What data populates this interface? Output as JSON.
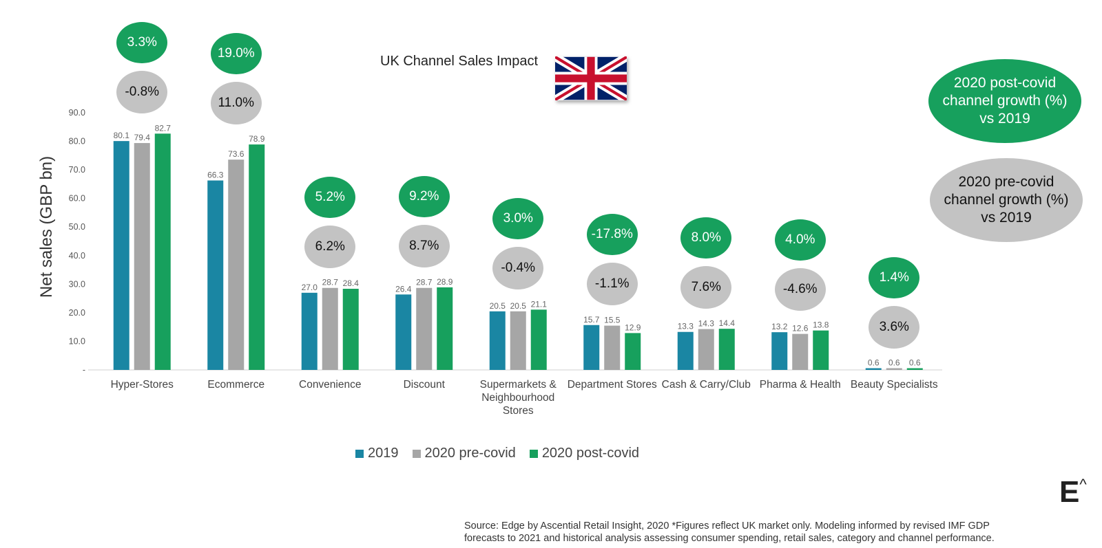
{
  "chart_data": {
    "type": "bar",
    "title": "UK Channel Sales Impact",
    "ylabel": "Net sales (GBP  bn)",
    "xlabel": "",
    "ylim": [
      0,
      90
    ],
    "yticks": [
      "-",
      "10.0",
      "20.0",
      "30.0",
      "40.0",
      "50.0",
      "60.0",
      "70.0",
      "80.0",
      "90.0"
    ],
    "categories": [
      "Hyper-Stores",
      "Ecommerce",
      "Convenience",
      "Discount",
      "Supermarkets & Neighbourhood Stores",
      "Department Stores",
      "Cash & Carry/Club",
      "Pharma & Health",
      "Beauty Specialists"
    ],
    "category_lines": [
      [
        "Hyper-Stores"
      ],
      [
        "Ecommerce"
      ],
      [
        "Convenience"
      ],
      [
        "Discount"
      ],
      [
        "Supermarkets &",
        "Neighbourhood",
        "Stores"
      ],
      [
        "Department Stores"
      ],
      [
        "Cash & Carry/Club"
      ],
      [
        "Pharma & Health"
      ],
      [
        "Beauty Specialists"
      ]
    ],
    "series": [
      {
        "name": "2019",
        "color": "#1a86a3",
        "values": [
          80.1,
          66.3,
          27.0,
          26.4,
          20.5,
          15.7,
          13.3,
          13.2,
          0.6
        ]
      },
      {
        "name": "2020 pre-covid",
        "color": "#a6a6a6",
        "values": [
          79.4,
          73.6,
          28.7,
          28.7,
          20.5,
          15.5,
          14.3,
          12.6,
          0.6
        ]
      },
      {
        "name": "2020 post-covid",
        "color": "#17a05d",
        "values": [
          82.7,
          78.9,
          28.4,
          28.9,
          21.1,
          12.9,
          14.4,
          13.8,
          0.6
        ]
      }
    ],
    "growth_post_covid": [
      "3.3%",
      "19.0%",
      "5.2%",
      "9.2%",
      "3.0%",
      "-17.8%",
      "8.0%",
      "4.0%",
      "1.4%"
    ],
    "growth_pre_covid": [
      "-0.8%",
      "11.0%",
      "6.2%",
      "8.7%",
      "-0.4%",
      "-1.1%",
      "7.6%",
      "-4.6%",
      "3.6%"
    ],
    "legend": "bottom"
  },
  "colors": {
    "post": "#17a05d",
    "pre": "#c3c3c3",
    "y2019": "#1a86a3",
    "pre_bar": "#a6a6a6"
  },
  "legend_bubbles": {
    "post": [
      "2020 post-covid",
      "channel growth (%)",
      "vs 2019"
    ],
    "pre": [
      "2020 pre-covid",
      "channel growth (%)",
      "vs 2019"
    ]
  },
  "logo": {
    "letter": "E",
    "caret": "^"
  },
  "flag": {
    "icon": "uk-flag-icon"
  },
  "source_lines": [
    "Source: Edge by Ascential Retail Insight, 2020 *Figures reflect UK market only. Modeling informed by revised IMF GDP",
    "forecasts to 2021 and historical analysis assessing consumer spending, retail sales, category and channel performance."
  ]
}
